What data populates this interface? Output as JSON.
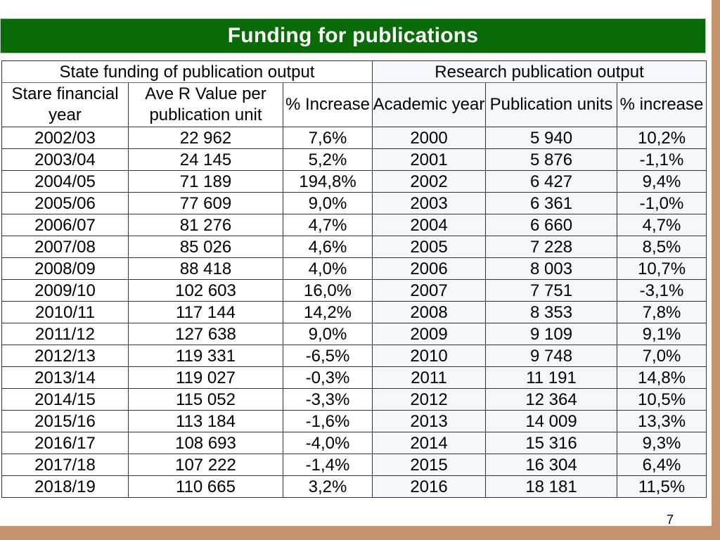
{
  "title": "Funding for publications",
  "groups": {
    "left": "State funding of publication output",
    "right": "Research publication output"
  },
  "columns": [
    "Stare financial year",
    "Ave R Value per publication unit",
    "% Increase",
    "Academic year",
    "Publication units",
    "% increase"
  ],
  "rows": [
    [
      "2002/03",
      "22 962",
      "7,6%",
      "2000",
      "5 940",
      "10,2%"
    ],
    [
      "2003/04",
      "24 145",
      "5,2%",
      "2001",
      "5 876",
      "-1,1%"
    ],
    [
      "2004/05",
      "71 189",
      "194,8%",
      "2002",
      "6 427",
      "9,4%"
    ],
    [
      "2005/06",
      "77 609",
      "9,0%",
      "2003",
      "6 361",
      "-1,0%"
    ],
    [
      "2006/07",
      "81 276",
      "4,7%",
      "2004",
      "6 660",
      "4,7%"
    ],
    [
      "2007/08",
      "85 026",
      "4,6%",
      "2005",
      "7 228",
      "8,5%"
    ],
    [
      "2008/09",
      "88 418",
      "4,0%",
      "2006",
      "8 003",
      "10,7%"
    ],
    [
      "2009/10",
      "102 603",
      "16,0%",
      "2007",
      "7 751",
      "-3,1%"
    ],
    [
      "2010/11",
      "117 144",
      "14,2%",
      "2008",
      "8 353",
      "7,8%"
    ],
    [
      "2011/12",
      "127 638",
      "9,0%",
      "2009",
      "9 109",
      "9,1%"
    ],
    [
      "2012/13",
      "119 331",
      "-6,5%",
      "2010",
      "9 748",
      "7,0%"
    ],
    [
      "2013/14",
      "119 027",
      "-0,3%",
      "2011",
      "11 191",
      "14,8%"
    ],
    [
      "2014/15",
      "115 052",
      "-3,3%",
      "2012",
      "12 364",
      "10,5%"
    ],
    [
      "2015/16",
      "113 184",
      "-1,6%",
      "2013",
      "14 009",
      "13,3%"
    ],
    [
      "2016/17",
      "108 693",
      "-4,0%",
      "2014",
      "15 316",
      "9,3%"
    ],
    [
      "2017/18",
      "107 222",
      "-1,4%",
      "2015",
      "16 304",
      "6,4%"
    ],
    [
      "2018/19",
      "110 665",
      "3,2%",
      "2016",
      "18 181",
      "11,5%"
    ]
  ],
  "page_number": "7",
  "colors": {
    "title_bar": "#086b08",
    "title_text": "#ffffff",
    "frame": "#c4946c",
    "slide": "#fffdfb"
  }
}
